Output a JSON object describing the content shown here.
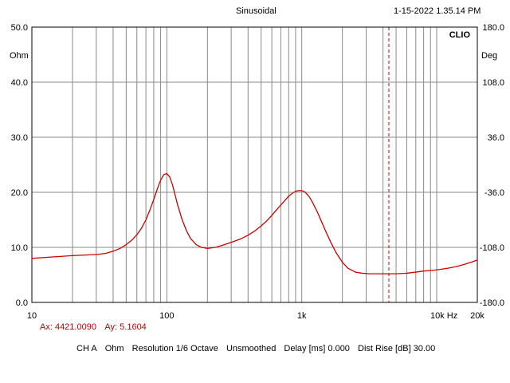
{
  "header": {
    "mode": "Sinusoidal",
    "datetime": "1-15-2022 1.35.14 PM"
  },
  "chart_data": {
    "type": "line",
    "brand": "CLIO",
    "x_scale": "log",
    "xlim": [
      10,
      20000
    ],
    "y_left": {
      "unit": "Ohm",
      "ylim": [
        0,
        50
      ],
      "ticks": [
        "0.0",
        "10.0",
        "20.0",
        "30.0",
        "40.0",
        "50.0"
      ]
    },
    "y_right": {
      "unit": "Deg",
      "ylim": [
        -180,
        180
      ],
      "ticks": [
        "-180.0",
        "-108.0",
        "-36.0",
        "36.0",
        "108.0",
        "180.0"
      ]
    },
    "x_tick_labels": [
      {
        "value": 10,
        "label": "10"
      },
      {
        "value": 100,
        "label": "100"
      },
      {
        "value": 1000,
        "label": "1k"
      },
      {
        "value": 10000,
        "label": "10k Hz"
      },
      {
        "value": 20000,
        "label": "20k"
      }
    ],
    "grid": true,
    "cursor_hz": 4421.009,
    "series": [
      {
        "color": "#cc0000",
        "x": [
          10,
          15,
          20,
          25,
          30,
          35,
          40,
          45,
          50,
          55,
          60,
          65,
          70,
          75,
          80,
          85,
          90,
          95,
          100,
          105,
          110,
          115,
          120,
          130,
          140,
          150,
          165,
          180,
          200,
          230,
          260,
          300,
          350,
          400,
          450,
          500,
          550,
          600,
          650,
          700,
          750,
          800,
          850,
          900,
          950,
          1000,
          1050,
          1100,
          1150,
          1200,
          1300,
          1400,
          1500,
          1650,
          1800,
          2000,
          2200,
          2500,
          2800,
          3200,
          3600,
          4000,
          4500,
          5000,
          6000,
          7000,
          8000,
          9000,
          10000,
          12000,
          14000,
          16000,
          18000,
          20000
        ],
        "y": [
          8.0,
          8.3,
          8.5,
          8.6,
          8.7,
          8.9,
          9.3,
          9.8,
          10.5,
          11.3,
          12.3,
          13.5,
          15.0,
          16.8,
          18.7,
          20.6,
          22.2,
          23.2,
          23.4,
          22.8,
          21.4,
          19.6,
          17.8,
          15.0,
          13.0,
          11.6,
          10.5,
          10.0,
          9.8,
          10.0,
          10.4,
          10.9,
          11.5,
          12.2,
          13.0,
          13.9,
          14.8,
          15.8,
          16.8,
          17.7,
          18.5,
          19.3,
          19.8,
          20.2,
          20.3,
          20.3,
          20.1,
          19.6,
          19.0,
          18.2,
          16.5,
          14.7,
          13.0,
          10.8,
          9.0,
          7.3,
          6.2,
          5.5,
          5.3,
          5.2,
          5.2,
          5.2,
          5.2,
          5.2,
          5.3,
          5.5,
          5.7,
          5.8,
          5.9,
          6.2,
          6.5,
          6.9,
          7.3,
          7.7
        ]
      }
    ]
  },
  "cursor": {
    "ax": "Ax: 4421.0090",
    "ay": "Ay: 5.1604"
  },
  "footer": {
    "channel": "CH A",
    "unit": "Ohm",
    "resolution": "Resolution 1/6 Octave",
    "smoothing": "Unsmoothed",
    "delay": "Delay [ms] 0.000",
    "dist_rise": "Dist Rise [dB] 30.00"
  }
}
